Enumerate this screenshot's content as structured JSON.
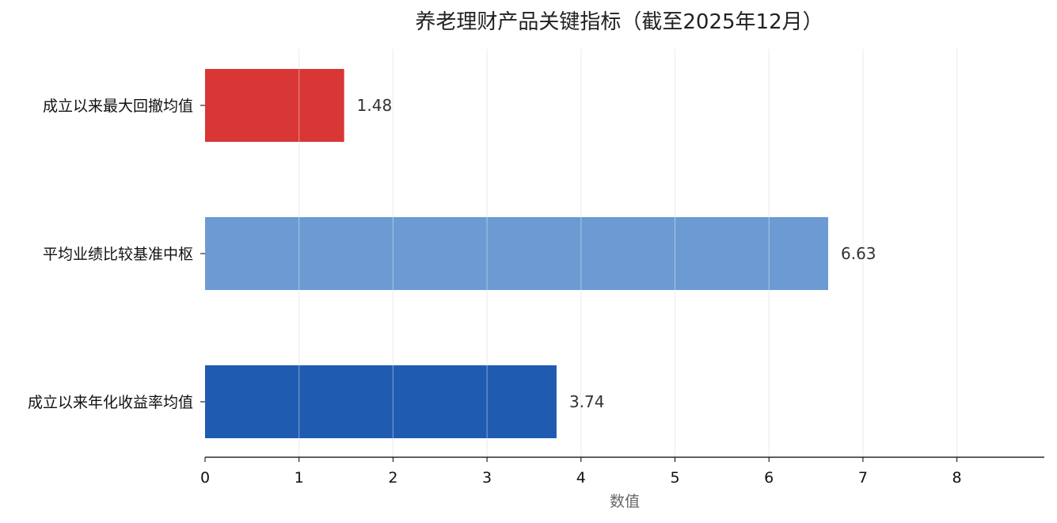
{
  "chart_data": {
    "type": "bar",
    "orientation": "horizontal",
    "title": "养老理财产品关键指标（截至2025年12月）",
    "xlabel": "数值",
    "ylabel": "",
    "xlim": [
      0,
      8.93
    ],
    "xticks": [
      0,
      1,
      2,
      3,
      4,
      5,
      6,
      7,
      8
    ],
    "grid": "vertical",
    "categories": [
      "成立以来最大回撤均值",
      "平均业绩比较基准中枢",
      "成立以来年化收益率均值"
    ],
    "values": [
      1.48,
      6.63,
      3.74
    ],
    "value_labels": [
      "1.48",
      "6.63",
      "3.74"
    ],
    "colors": [
      "#d93636",
      "#6b9bd2",
      "#1f5bb0"
    ]
  }
}
